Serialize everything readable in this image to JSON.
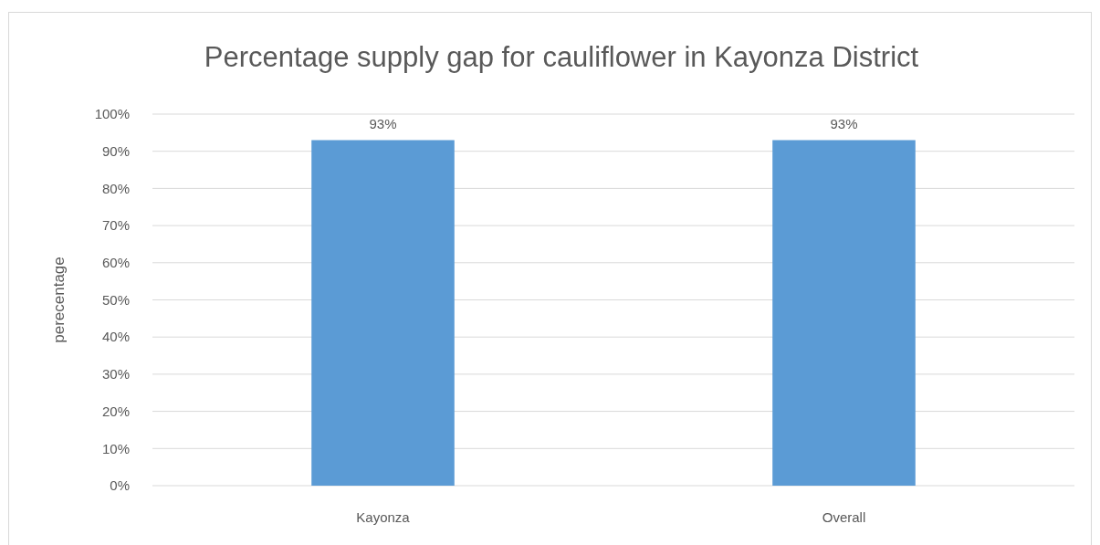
{
  "chart_data": {
    "type": "bar",
    "title": "Percentage supply gap for cauliflower in Kayonza District",
    "ylabel": "perecentage",
    "categories": [
      "Kayonza",
      "Overall"
    ],
    "values": [
      93,
      93
    ],
    "color": "#5b9bd5",
    "value_labels": [
      "93%",
      "93%"
    ],
    "ylim": [
      0,
      100
    ],
    "yticks": [
      {
        "value": 0,
        "label": "0%"
      },
      {
        "value": 10,
        "label": "10%"
      },
      {
        "value": 20,
        "label": "20%"
      },
      {
        "value": 30,
        "label": "30%"
      },
      {
        "value": 40,
        "label": "40%"
      },
      {
        "value": 50,
        "label": "50%"
      },
      {
        "value": 60,
        "label": "60%"
      },
      {
        "value": 70,
        "label": "70%"
      },
      {
        "value": 80,
        "label": "80%"
      },
      {
        "value": 90,
        "label": "90%"
      },
      {
        "value": 100,
        "label": "100%"
      }
    ],
    "grid": "y"
  }
}
